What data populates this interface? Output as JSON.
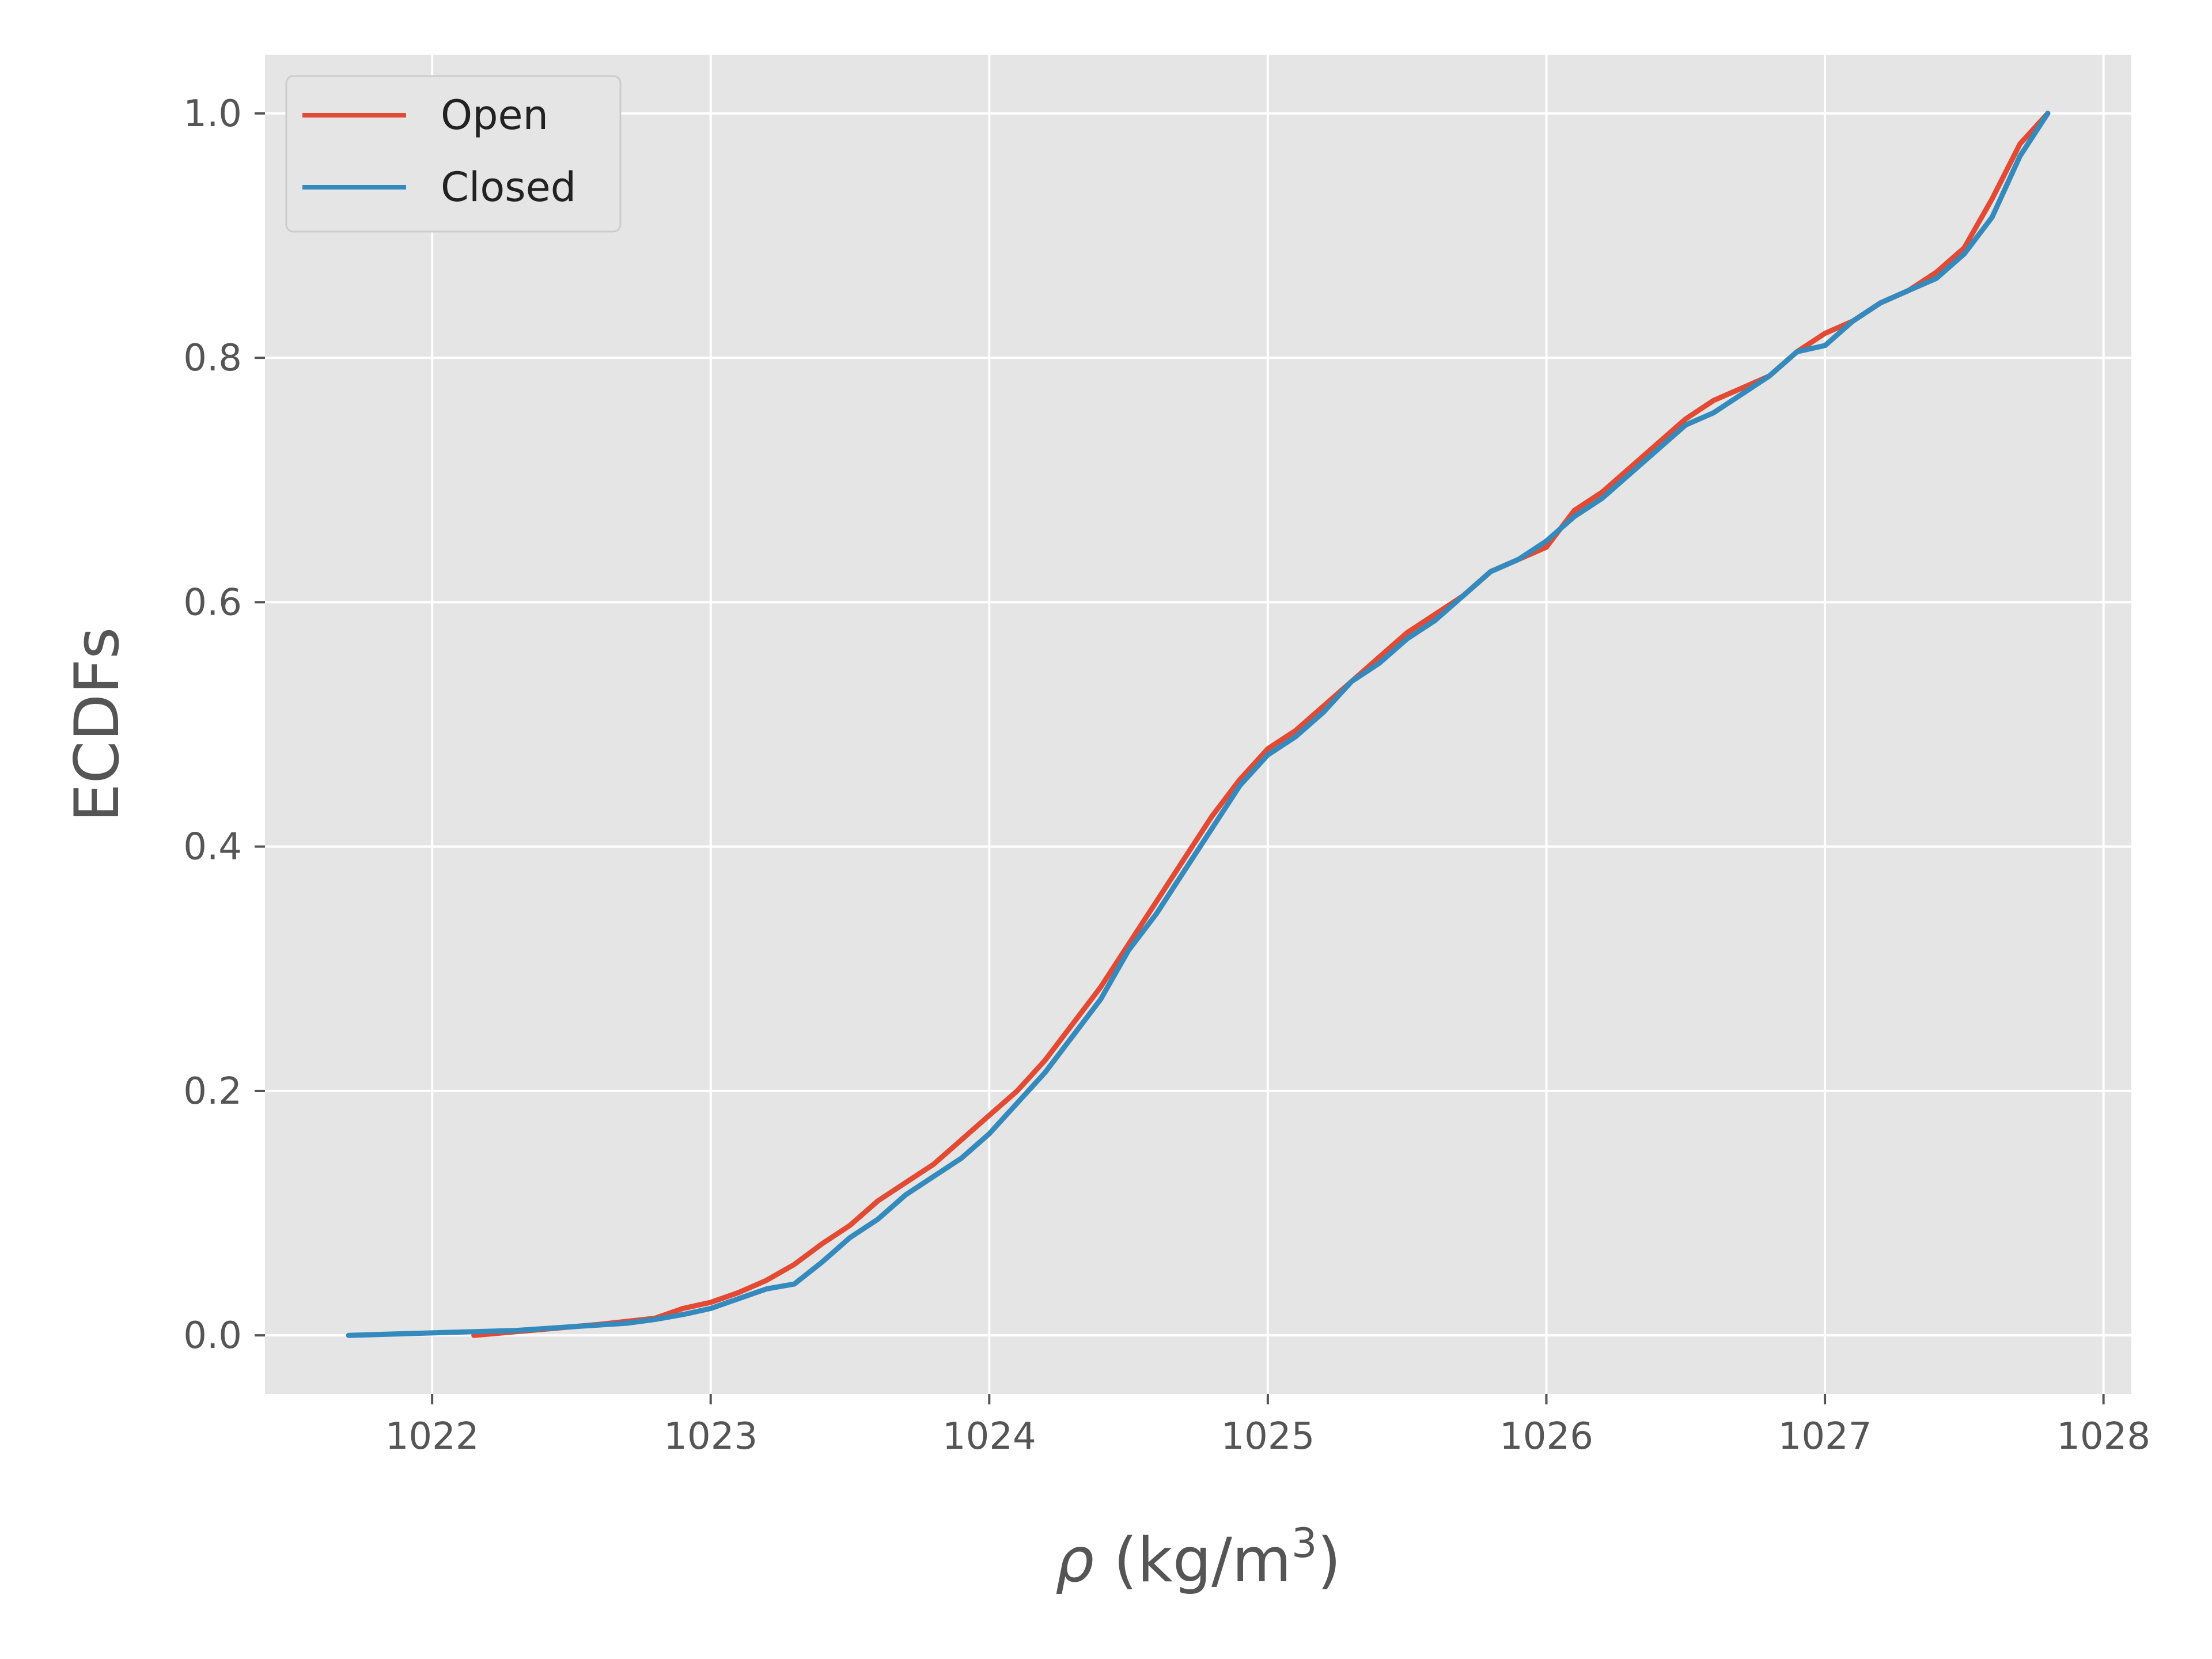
{
  "chart_data": {
    "type": "line",
    "title": "",
    "xlabel_symbol": "ρ",
    "xlabel_text": " (kg/m",
    "xlabel_superscript": "3",
    "xlabel_close": ")",
    "ylabel": "ECDFs",
    "xlim": [
      1021.4,
      1028.1
    ],
    "ylim": [
      -0.048,
      1.048
    ],
    "xticks": [
      1022,
      1023,
      1024,
      1025,
      1026,
      1027,
      1028
    ],
    "yticks": [
      0.0,
      0.2,
      0.4,
      0.6,
      0.8,
      1.0
    ],
    "xtick_labels": [
      "1022",
      "1023",
      "1024",
      "1025",
      "1026",
      "1027",
      "1028"
    ],
    "ytick_labels": [
      "0.0",
      "0.2",
      "0.4",
      "0.6",
      "0.8",
      "1.0"
    ],
    "grid": true,
    "background_color": "#e5e5e5",
    "grid_color": "#ffffff",
    "legend_position": "upper-left",
    "series": [
      {
        "name": "Open",
        "color": "#e24a33",
        "x": [
          1022.15,
          1022.4,
          1022.6,
          1022.8,
          1022.9,
          1023.0,
          1023.1,
          1023.2,
          1023.3,
          1023.4,
          1023.5,
          1023.6,
          1023.7,
          1023.8,
          1023.9,
          1024.0,
          1024.1,
          1024.2,
          1024.3,
          1024.4,
          1024.5,
          1024.6,
          1024.7,
          1024.8,
          1024.9,
          1025.0,
          1025.1,
          1025.2,
          1025.3,
          1025.4,
          1025.5,
          1025.6,
          1025.7,
          1025.8,
          1025.9,
          1026.0,
          1026.1,
          1026.2,
          1026.3,
          1026.4,
          1026.5,
          1026.6,
          1026.7,
          1026.8,
          1026.9,
          1027.0,
          1027.1,
          1027.2,
          1027.3,
          1027.4,
          1027.5,
          1027.6,
          1027.7,
          1027.8
        ],
        "y": [
          0.0,
          0.005,
          0.009,
          0.014,
          0.022,
          0.027,
          0.035,
          0.045,
          0.058,
          0.075,
          0.09,
          0.11,
          0.125,
          0.14,
          0.16,
          0.18,
          0.2,
          0.225,
          0.255,
          0.285,
          0.32,
          0.355,
          0.39,
          0.425,
          0.455,
          0.48,
          0.495,
          0.515,
          0.535,
          0.555,
          0.575,
          0.59,
          0.605,
          0.625,
          0.635,
          0.645,
          0.675,
          0.69,
          0.71,
          0.73,
          0.75,
          0.765,
          0.775,
          0.785,
          0.805,
          0.82,
          0.83,
          0.845,
          0.855,
          0.87,
          0.89,
          0.93,
          0.975,
          1.0
        ]
      },
      {
        "name": "Closed",
        "color": "#348abd",
        "x": [
          1021.7,
          1022.0,
          1022.3,
          1022.5,
          1022.7,
          1022.8,
          1022.9,
          1023.0,
          1023.1,
          1023.2,
          1023.3,
          1023.4,
          1023.5,
          1023.6,
          1023.7,
          1023.8,
          1023.9,
          1024.0,
          1024.1,
          1024.2,
          1024.3,
          1024.4,
          1024.5,
          1024.6,
          1024.7,
          1024.8,
          1024.9,
          1025.0,
          1025.1,
          1025.2,
          1025.3,
          1025.4,
          1025.5,
          1025.6,
          1025.7,
          1025.8,
          1025.9,
          1026.0,
          1026.1,
          1026.2,
          1026.3,
          1026.4,
          1026.5,
          1026.6,
          1026.7,
          1026.8,
          1026.9,
          1027.0,
          1027.1,
          1027.2,
          1027.3,
          1027.4,
          1027.5,
          1027.6,
          1027.7,
          1027.8
        ],
        "y": [
          0.0,
          0.002,
          0.004,
          0.007,
          0.01,
          0.013,
          0.017,
          0.022,
          0.03,
          0.038,
          0.042,
          0.06,
          0.08,
          0.095,
          0.115,
          0.13,
          0.145,
          0.165,
          0.19,
          0.215,
          0.245,
          0.275,
          0.315,
          0.345,
          0.38,
          0.415,
          0.45,
          0.475,
          0.49,
          0.51,
          0.535,
          0.55,
          0.57,
          0.585,
          0.605,
          0.625,
          0.635,
          0.65,
          0.67,
          0.685,
          0.705,
          0.725,
          0.745,
          0.755,
          0.77,
          0.785,
          0.805,
          0.81,
          0.83,
          0.845,
          0.855,
          0.865,
          0.885,
          0.915,
          0.965,
          1.0
        ]
      }
    ]
  }
}
